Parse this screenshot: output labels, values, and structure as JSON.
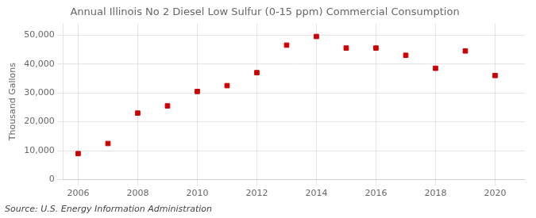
{
  "chart_data": {
    "type": "scatter",
    "title": "Annual Illinois No 2 Diesel Low Sulfur (0-15 ppm) Commercial Consumption",
    "ylabel": "Thousand Gallons",
    "annotations": [
      "Source: U.S. Energy Information Administration"
    ],
    "x": [
      2006,
      2007,
      2008,
      2009,
      2010,
      2011,
      2012,
      2013,
      2014,
      2015,
      2016,
      2017,
      2018,
      2019,
      2020
    ],
    "values": [
      9000,
      12500,
      23000,
      25500,
      30500,
      32500,
      37000,
      46500,
      49500,
      45500,
      45500,
      43000,
      38500,
      44500,
      36000
    ],
    "color": "#cc0000",
    "marker": "square",
    "xlim": [
      2005.5,
      2021.0
    ],
    "ylim": [
      0,
      54000
    ],
    "xticks": [
      2006,
      2008,
      2010,
      2012,
      2014,
      2016,
      2018,
      2020
    ],
    "yticks": [
      0,
      {
        "value": 10000,
        "label": "10,000"
      },
      {
        "value": 20000,
        "label": "20,000"
      },
      {
        "value": 30000,
        "label": "30,000"
      },
      {
        "value": 40000,
        "label": "40,000"
      },
      {
        "value": 50000,
        "label": "50,000"
      }
    ],
    "grid": true
  }
}
